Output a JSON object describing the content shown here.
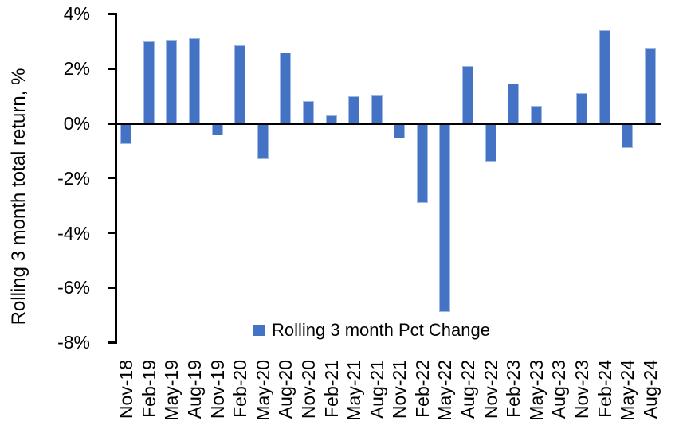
{
  "chart_data": {
    "type": "bar",
    "title": "",
    "xlabel": "",
    "ylabel": "Rolling 3 month total return, %",
    "categories": [
      "Nov-18",
      "Feb-19",
      "May-19",
      "Aug-19",
      "Nov-19",
      "Feb-20",
      "May-20",
      "Aug-20",
      "Nov-20",
      "Feb-21",
      "May-21",
      "Aug-21",
      "Nov-21",
      "Feb-22",
      "May-22",
      "Aug-22",
      "Nov-22",
      "Feb-23",
      "May-23",
      "Aug-23",
      "Nov-23",
      "Feb-24",
      "May-24",
      "Aug-24"
    ],
    "values": [
      -0.75,
      3.0,
      3.05,
      3.1,
      -0.45,
      2.85,
      -1.3,
      2.6,
      0.8,
      0.3,
      1.0,
      1.05,
      -0.55,
      -2.9,
      -6.9,
      2.1,
      -1.4,
      1.45,
      0.65,
      0.0,
      1.1,
      3.4,
      -0.9,
      2.75
    ],
    "ylim": [
      -8,
      4
    ],
    "yticks": [
      4,
      2,
      0,
      -2,
      -4,
      -6,
      -8
    ],
    "ytick_labels": [
      "4%",
      "2%",
      "0%",
      "-2%",
      "-4%",
      "-6%",
      "-8%"
    ],
    "grid": false,
    "legend": {
      "label": "Rolling 3 month Pct Change",
      "position": "bottom-center"
    },
    "colors": {
      "bar_fill": "#4472C4",
      "bar_border": "#9FB9E2",
      "axis": "#000000",
      "text": "#000000"
    }
  }
}
